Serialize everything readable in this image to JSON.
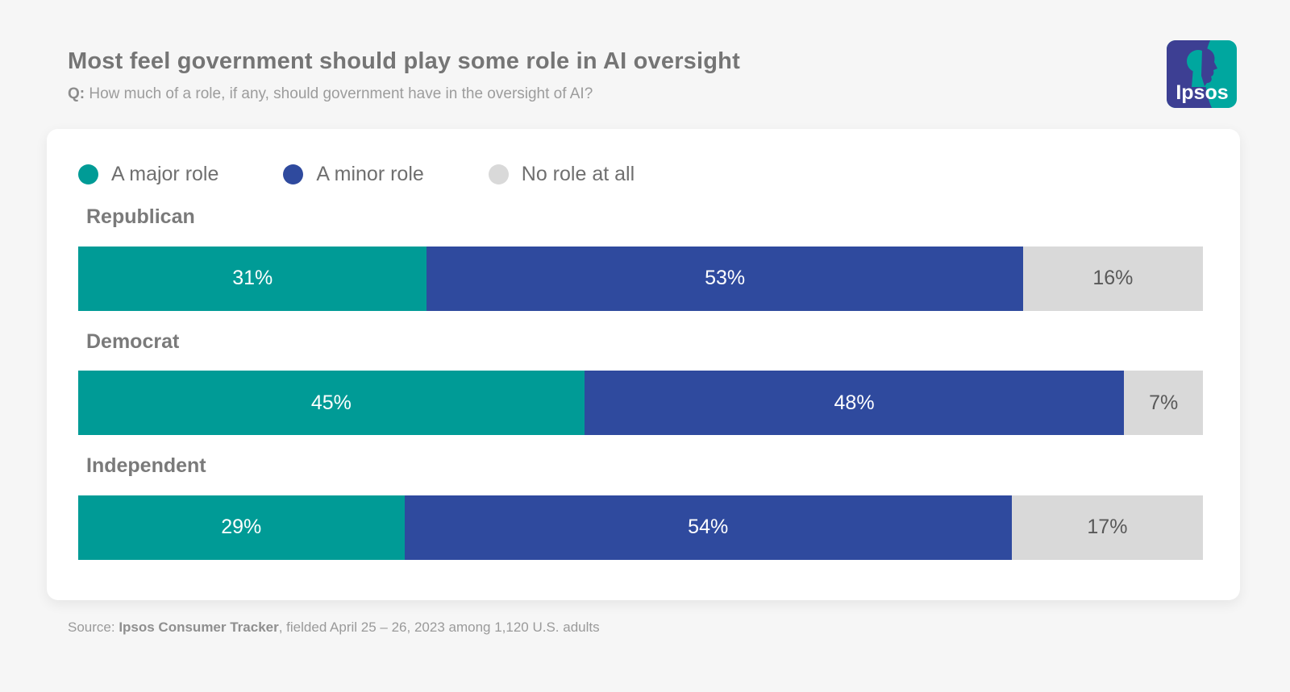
{
  "header": {
    "title": "Most feel government should play some role in AI oversight",
    "question_prefix": "Q:",
    "question": " How much of a role, if any, should government have in the oversight of AI?"
  },
  "logo": {
    "text": "Ipsos",
    "blue": "#3D3F93",
    "teal": "#00A79F"
  },
  "colors": {
    "page_background": "#F6F6F6",
    "card_background": "#FFFFFF",
    "title_text": "#757575",
    "muted_text": "#9C9C9C",
    "category_text": "#7A7A7A"
  },
  "chart_data": {
    "type": "bar",
    "orientation": "horizontal-stacked",
    "title": "Most feel government should play some role in AI oversight",
    "categories": [
      "Republican",
      "Democrat",
      "Independent"
    ],
    "series": [
      {
        "name": "A major role",
        "color": "#009B96",
        "label_color": "#FFFFFF",
        "values": [
          31,
          45,
          29
        ]
      },
      {
        "name": "A minor role",
        "color": "#2F4A9E",
        "label_color": "#FFFFFF",
        "values": [
          53,
          48,
          54
        ]
      },
      {
        "name": "No role at all",
        "color": "#D9D9D9",
        "label_color": "#595959",
        "values": [
          16,
          7,
          17
        ]
      }
    ],
    "value_suffix": "%",
    "xlim": [
      0,
      100
    ],
    "legend_position": "top",
    "grid": false
  },
  "source": {
    "prefix": "Source: ",
    "bold": "Ipsos Consumer Tracker",
    "rest": ", fielded April 25 – 26, 2023 among 1,120 U.S. adults"
  }
}
